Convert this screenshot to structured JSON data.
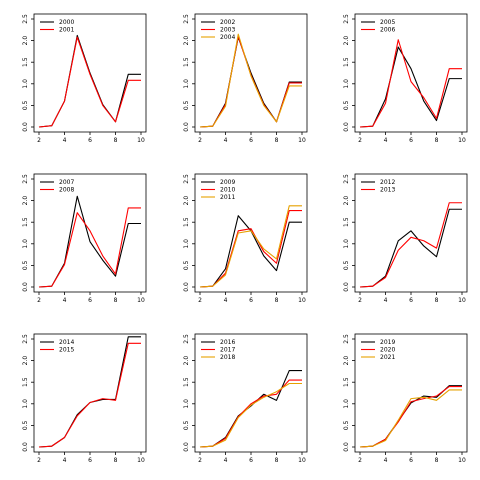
{
  "chart_data": [
    {
      "type": "line",
      "panel": 1,
      "x": [
        2,
        3,
        4,
        5,
        6,
        7,
        8,
        9,
        10
      ],
      "xlim": [
        2,
        10
      ],
      "ylim": [
        0,
        2.5
      ],
      "xticks": [
        "2",
        "4",
        "6",
        "8",
        "10"
      ],
      "yticks": [
        "0.0",
        "0.5",
        "1.0",
        "1.5",
        "2.0",
        "2.5"
      ],
      "legend": "top-left",
      "series": [
        {
          "name": "2000",
          "color": "#000000",
          "values": [
            0,
            0.03,
            0.6,
            2.12,
            1.25,
            0.52,
            0.12,
            1.22,
            1.22
          ]
        },
        {
          "name": "2001",
          "color": "#ff0000",
          "values": [
            0,
            0.03,
            0.6,
            2.08,
            1.22,
            0.5,
            0.12,
            1.08,
            1.08
          ]
        }
      ]
    },
    {
      "type": "line",
      "panel": 2,
      "x": [
        2,
        3,
        4,
        5,
        6,
        7,
        8,
        9,
        10
      ],
      "xlim": [
        2,
        10
      ],
      "ylim": [
        0,
        2.5
      ],
      "xticks": [
        "2",
        "4",
        "6",
        "8",
        "10"
      ],
      "yticks": [
        "0.0",
        "0.5",
        "1.0",
        "1.5",
        "2.0",
        "2.5"
      ],
      "legend": "top-left",
      "series": [
        {
          "name": "2002",
          "color": "#000000",
          "values": [
            0,
            0.02,
            0.55,
            2.08,
            1.25,
            0.55,
            0.12,
            1.04,
            1.04
          ]
        },
        {
          "name": "2003",
          "color": "#ff0000",
          "values": [
            0,
            0.02,
            0.52,
            2.1,
            1.2,
            0.52,
            0.12,
            1.02,
            1.02
          ]
        },
        {
          "name": "2004",
          "color": "#e6a100",
          "values": [
            0,
            0.02,
            0.48,
            2.15,
            1.18,
            0.5,
            0.12,
            0.95,
            0.95
          ]
        }
      ]
    },
    {
      "type": "line",
      "panel": 3,
      "x": [
        2,
        3,
        4,
        5,
        6,
        7,
        8,
        9,
        10
      ],
      "xlim": [
        2,
        10
      ],
      "ylim": [
        0,
        2.5
      ],
      "xticks": [
        "2",
        "4",
        "6",
        "8",
        "10"
      ],
      "yticks": [
        "0.0",
        "0.5",
        "1.0",
        "1.5",
        "2.0",
        "2.5"
      ],
      "legend": "top-left",
      "series": [
        {
          "name": "2005",
          "color": "#000000",
          "values": [
            0,
            0.02,
            0.65,
            1.85,
            1.35,
            0.6,
            0.15,
            1.12,
            1.12
          ]
        },
        {
          "name": "2006",
          "color": "#ff0000",
          "values": [
            0,
            0.02,
            0.55,
            2.02,
            1.05,
            0.68,
            0.2,
            1.35,
            1.35
          ]
        }
      ]
    },
    {
      "type": "line",
      "panel": 4,
      "x": [
        2,
        3,
        4,
        5,
        6,
        7,
        8,
        9,
        10
      ],
      "xlim": [
        2,
        10
      ],
      "ylim": [
        0,
        2.5
      ],
      "xticks": [
        "2",
        "4",
        "6",
        "8",
        "10"
      ],
      "yticks": [
        "0.0",
        "0.5",
        "1.0",
        "1.5",
        "2.0",
        "2.5"
      ],
      "legend": "top-left",
      "series": [
        {
          "name": "2007",
          "color": "#000000",
          "values": [
            0,
            0.02,
            0.55,
            2.1,
            1.05,
            0.62,
            0.25,
            1.47,
            1.47
          ]
        },
        {
          "name": "2008",
          "color": "#ff0000",
          "values": [
            0,
            0.02,
            0.52,
            1.72,
            1.3,
            0.72,
            0.3,
            1.83,
            1.83
          ]
        }
      ]
    },
    {
      "type": "line",
      "panel": 5,
      "x": [
        2,
        3,
        4,
        5,
        6,
        7,
        8,
        9,
        10
      ],
      "xlim": [
        2,
        10
      ],
      "ylim": [
        0,
        2.5
      ],
      "xticks": [
        "2",
        "4",
        "6",
        "8",
        "10"
      ],
      "yticks": [
        "0.0",
        "0.5",
        "1.0",
        "1.5",
        "2.0",
        "2.5"
      ],
      "legend": "top-left",
      "series": [
        {
          "name": "2009",
          "color": "#000000",
          "values": [
            0,
            0.02,
            0.42,
            1.65,
            1.3,
            0.72,
            0.38,
            1.5,
            1.5
          ]
        },
        {
          "name": "2010",
          "color": "#ff0000",
          "values": [
            0,
            0.02,
            0.32,
            1.3,
            1.35,
            0.82,
            0.55,
            1.77,
            1.77
          ]
        },
        {
          "name": "2011",
          "color": "#e6a100",
          "values": [
            0,
            0.02,
            0.28,
            1.25,
            1.3,
            0.88,
            0.65,
            1.88,
            1.88
          ]
        }
      ]
    },
    {
      "type": "line",
      "panel": 6,
      "x": [
        2,
        3,
        4,
        5,
        6,
        7,
        8,
        9,
        10
      ],
      "xlim": [
        2,
        10
      ],
      "ylim": [
        0,
        2.5
      ],
      "xticks": [
        "2",
        "4",
        "6",
        "8",
        "10"
      ],
      "yticks": [
        "0.0",
        "0.5",
        "1.0",
        "1.5",
        "2.0",
        "2.5"
      ],
      "legend": "top-left",
      "series": [
        {
          "name": "2012",
          "color": "#000000",
          "values": [
            0,
            0.02,
            0.25,
            1.07,
            1.3,
            0.95,
            0.7,
            1.8,
            1.8
          ]
        },
        {
          "name": "2013",
          "color": "#ff0000",
          "values": [
            0,
            0.02,
            0.22,
            0.85,
            1.15,
            1.07,
            0.9,
            1.95,
            1.95
          ]
        }
      ]
    },
    {
      "type": "line",
      "panel": 7,
      "x": [
        2,
        3,
        4,
        5,
        6,
        7,
        8,
        9,
        10
      ],
      "xlim": [
        2,
        10
      ],
      "ylim": [
        0,
        2.5
      ],
      "xticks": [
        "2",
        "4",
        "6",
        "8",
        "10"
      ],
      "yticks": [
        "0.0",
        "0.5",
        "1.0",
        "1.5",
        "2.0",
        "2.5"
      ],
      "legend": "top-left",
      "series": [
        {
          "name": "2014",
          "color": "#000000",
          "values": [
            0,
            0.02,
            0.22,
            0.75,
            1.03,
            1.1,
            1.1,
            2.55,
            2.55
          ]
        },
        {
          "name": "2015",
          "color": "#ff0000",
          "values": [
            0,
            0.02,
            0.22,
            0.72,
            1.03,
            1.12,
            1.08,
            2.4,
            2.4
          ]
        }
      ]
    },
    {
      "type": "line",
      "panel": 8,
      "x": [
        2,
        3,
        4,
        5,
        6,
        7,
        8,
        9,
        10
      ],
      "xlim": [
        2,
        10
      ],
      "ylim": [
        0,
        2.5
      ],
      "xticks": [
        "2",
        "4",
        "6",
        "8",
        "10"
      ],
      "yticks": [
        "0.0",
        "0.5",
        "1.0",
        "1.5",
        "2.0",
        "2.5"
      ],
      "legend": "top-left",
      "series": [
        {
          "name": "2016",
          "color": "#000000",
          "values": [
            0,
            0.02,
            0.22,
            0.72,
            0.95,
            1.22,
            1.08,
            1.77,
            1.77
          ]
        },
        {
          "name": "2017",
          "color": "#ff0000",
          "values": [
            0,
            0.02,
            0.2,
            0.7,
            1.0,
            1.18,
            1.22,
            1.55,
            1.55
          ]
        },
        {
          "name": "2018",
          "color": "#e6a100",
          "values": [
            0,
            0.02,
            0.16,
            0.68,
            0.97,
            1.15,
            1.28,
            1.47,
            1.47
          ]
        }
      ]
    },
    {
      "type": "line",
      "panel": 9,
      "x": [
        2,
        3,
        4,
        5,
        6,
        7,
        8,
        9,
        10
      ],
      "xlim": [
        2,
        10
      ],
      "ylim": [
        0,
        2.5
      ],
      "xticks": [
        "2",
        "4",
        "6",
        "8",
        "10"
      ],
      "yticks": [
        "0.0",
        "0.5",
        "1.0",
        "1.5",
        "2.0",
        "2.5"
      ],
      "legend": "top-left",
      "series": [
        {
          "name": "2019",
          "color": "#000000",
          "values": [
            0,
            0.02,
            0.18,
            0.6,
            1.02,
            1.18,
            1.15,
            1.42,
            1.42
          ]
        },
        {
          "name": "2020",
          "color": "#ff0000",
          "values": [
            0,
            0.02,
            0.18,
            0.58,
            1.05,
            1.12,
            1.18,
            1.4,
            1.4
          ]
        },
        {
          "name": "2021",
          "color": "#e6a100",
          "values": [
            0,
            0.02,
            0.15,
            0.62,
            1.12,
            1.15,
            1.08,
            1.32,
            1.32
          ]
        }
      ]
    }
  ]
}
